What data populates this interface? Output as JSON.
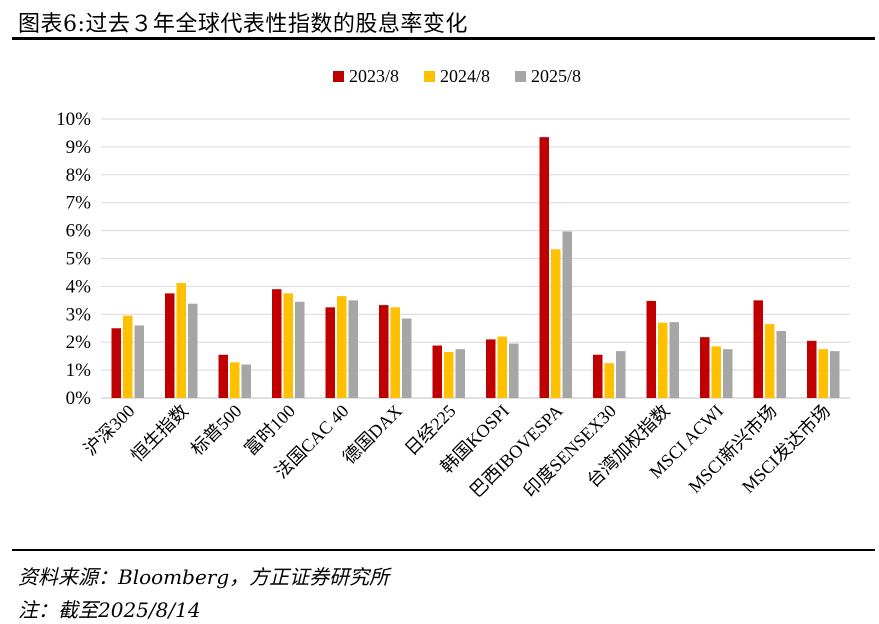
{
  "header": {
    "title": "图表6:过去３年全球代表性指数的股息率变化"
  },
  "footer": {
    "source": "资料来源：Bloomberg，方正证券研究所",
    "note": "注：截至2025/8/14"
  },
  "chart_data": {
    "type": "bar",
    "categories": [
      "沪深300",
      "恒生指数",
      "标普500",
      "富时100",
      "法国CAC 40",
      "德国DAX",
      "日经225",
      "韩国KOSPI",
      "巴西IBOVESPA",
      "印度SENSEX30",
      "台湾加权指数",
      "MSCI ACWI",
      "MSCI新兴市场",
      "MSCI发达市场"
    ],
    "series": [
      {
        "name": "2023/8",
        "color": "#c00000",
        "values": [
          2.5,
          3.75,
          1.55,
          3.9,
          3.25,
          3.33,
          1.88,
          2.1,
          9.35,
          1.55,
          3.48,
          2.18,
          3.5,
          2.05
        ]
      },
      {
        "name": "2024/8",
        "color": "#ffc000",
        "values": [
          2.95,
          4.12,
          1.28,
          3.75,
          3.65,
          3.25,
          1.65,
          2.2,
          5.33,
          1.25,
          2.7,
          1.85,
          2.65,
          1.75
        ]
      },
      {
        "name": "2025/8",
        "color": "#a6a6a6",
        "values": [
          2.6,
          3.38,
          1.2,
          3.45,
          3.5,
          2.85,
          1.75,
          1.95,
          5.97,
          1.68,
          2.72,
          1.75,
          2.4,
          1.68
        ]
      }
    ],
    "y_ticks": [
      "0%",
      "1%",
      "2%",
      "3%",
      "4%",
      "5%",
      "6%",
      "7%",
      "8%",
      "9%",
      "10%"
    ],
    "ylim": [
      0,
      10
    ],
    "grid": true,
    "legend_position": "top-center"
  }
}
